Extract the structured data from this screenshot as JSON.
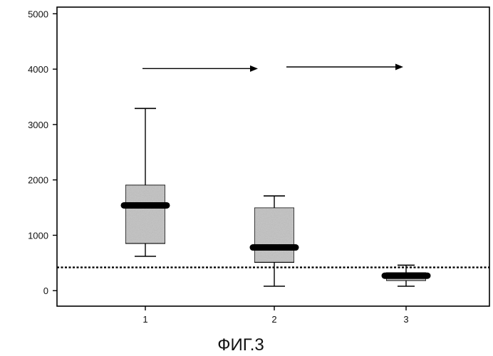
{
  "chart_data": {
    "type": "boxplot",
    "title": "",
    "xlabel": "",
    "ylabel": "",
    "categories": [
      "1",
      "2",
      "3"
    ],
    "ylim": [
      -280,
      5120
    ],
    "yticks": [
      0,
      1000,
      2000,
      3000,
      4000,
      5000
    ],
    "boxes": [
      {
        "category": "1",
        "min": 620,
        "q1": 850,
        "median": 1540,
        "q3": 1910,
        "max": 3290
      },
      {
        "category": "2",
        "min": 80,
        "q1": 510,
        "median": 780,
        "q3": 1500,
        "max": 1710
      },
      {
        "category": "3",
        "min": 80,
        "q1": 180,
        "median": 270,
        "q3": 330,
        "max": 460
      }
    ],
    "reference_line": {
      "value": 420,
      "style": "dotted"
    },
    "arrows": [
      {
        "from": "1",
        "to": "2",
        "y": 4010
      },
      {
        "from": "2",
        "to": "3",
        "y": 4040
      }
    ],
    "colors": {
      "box_fill": "#c8c8c8",
      "median": "#000000",
      "line": "#000000"
    }
  },
  "caption": "ФИГ.3"
}
